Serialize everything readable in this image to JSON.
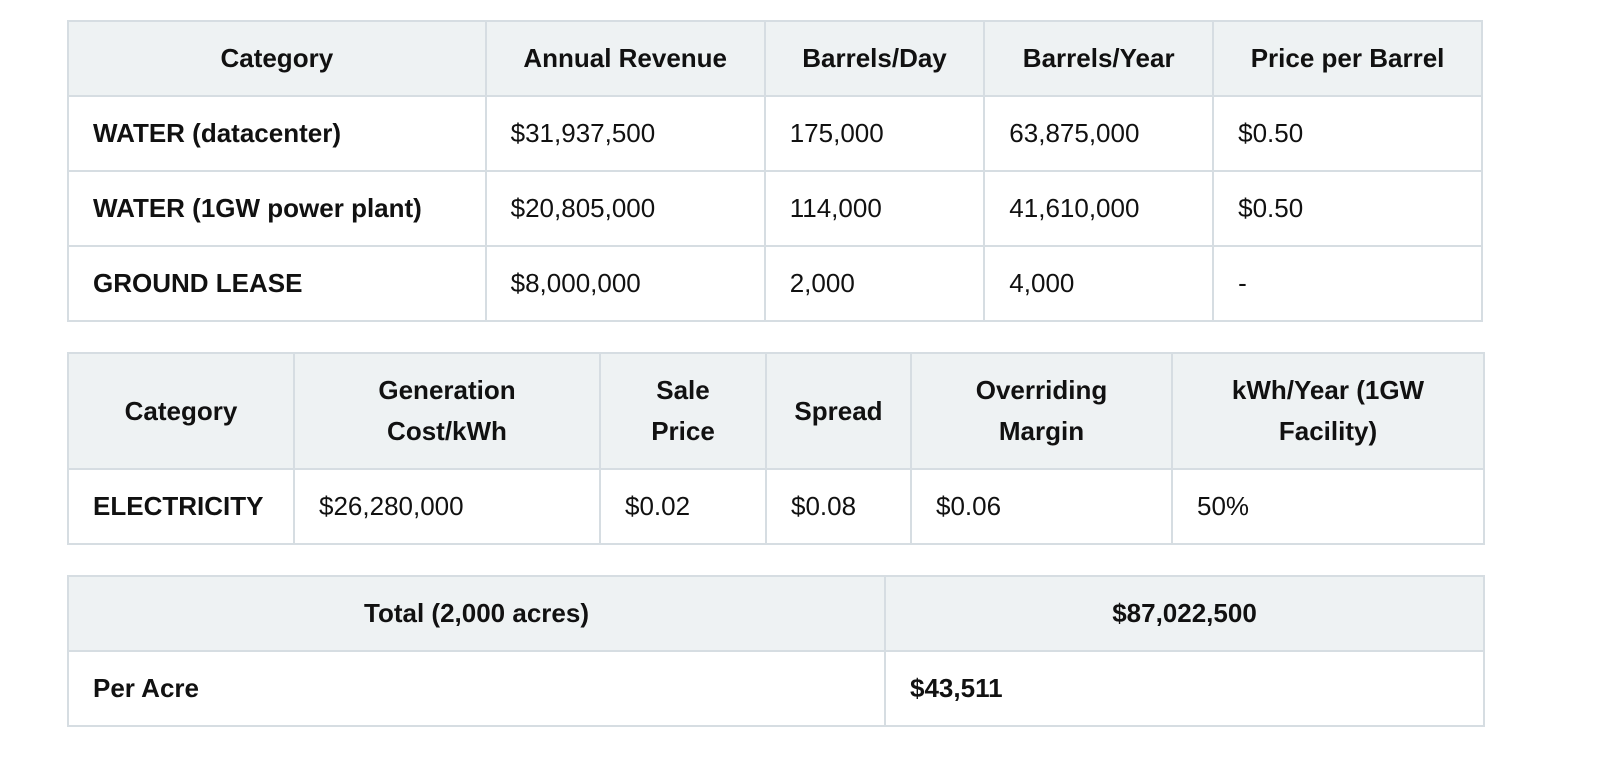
{
  "revenue_table": {
    "headers": [
      "Category",
      "Annual Revenue",
      "Barrels/Day",
      "Barrels/Year",
      "Price per Barrel"
    ],
    "rows": [
      [
        "WATER (datacenter)",
        "$31,937,500",
        "175,000",
        "63,875,000",
        "$0.50"
      ],
      [
        "WATER (1GW power plant)",
        "$20,805,000",
        "114,000",
        "41,610,000",
        "$0.50"
      ],
      [
        "GROUND LEASE",
        "$8,000,000",
        "2,000",
        "4,000",
        "-"
      ]
    ]
  },
  "electricity_table": {
    "headers": [
      "Category",
      "Generation Cost/kWh",
      "Sale Price",
      "Spread",
      "Overriding Margin",
      "kWh/Year (1GW Facility)"
    ],
    "rows": [
      [
        "ELECTRICITY",
        "$26,280,000",
        "$0.02",
        "$0.08",
        "$0.06",
        "50%"
      ]
    ]
  },
  "totals_table": {
    "total_label": "Total (2,000 acres)",
    "total_value": "$87,022,500",
    "per_acre_label": "Per Acre",
    "per_acre_value": "$43,511"
  }
}
